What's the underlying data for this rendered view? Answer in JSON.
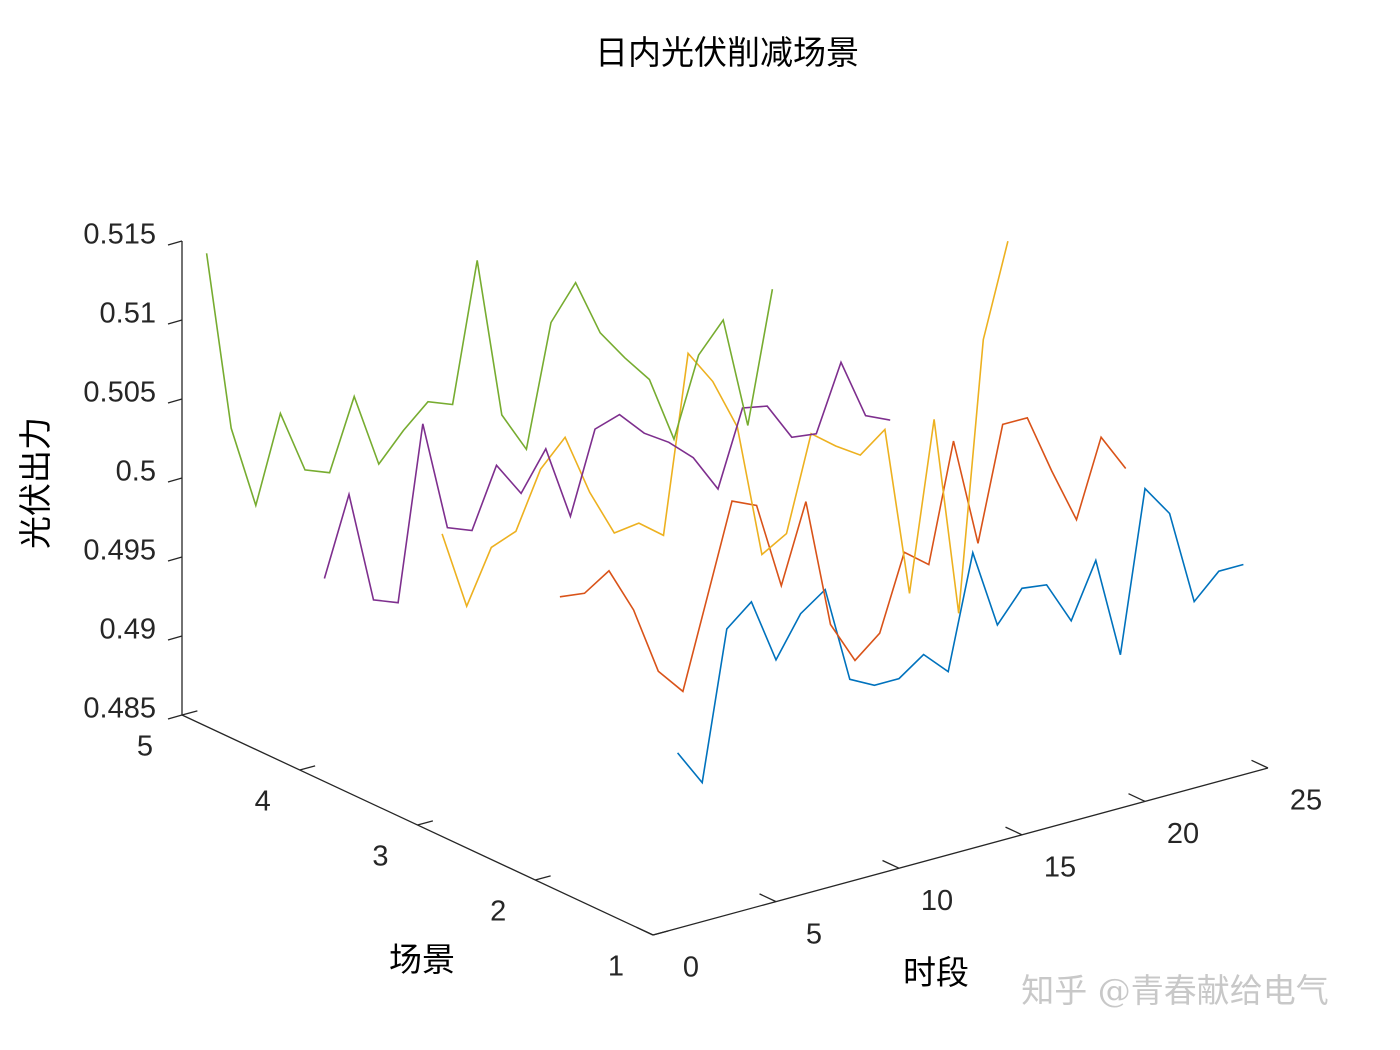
{
  "chart_data": {
    "type": "line3d",
    "title": "日内光伏削减场景",
    "xlabel": "时段",
    "ylabel": "场景",
    "zlabel": "光伏出力",
    "watermark": "知乎 @青春献给电气",
    "x": [
      1,
      2,
      3,
      4,
      5,
      6,
      7,
      8,
      9,
      10,
      11,
      12,
      13,
      14,
      15,
      16,
      17,
      18,
      19,
      20,
      21,
      22,
      23,
      24
    ],
    "series": [
      {
        "y": 1,
        "color": "#0072BD",
        "values": [
          0.4961,
          0.4938,
          0.5031,
          0.5044,
          0.5003,
          0.5028,
          0.5039,
          0.4978,
          0.497,
          0.497,
          0.4981,
          0.4966,
          0.5037,
          0.4987,
          0.5006,
          0.5004,
          0.4977,
          0.5011,
          0.4947,
          0.5048,
          0.5028,
          0.4968,
          0.4983,
          0.4983
        ]
      },
      {
        "y": 2,
        "color": "#D95319",
        "values": [
          0.5025,
          0.5023,
          0.5033,
          0.5004,
          0.4961,
          0.4944,
          0.5,
          0.5056,
          0.5049,
          0.4994,
          0.5043,
          0.4961,
          0.4934,
          0.4947,
          0.4994,
          0.4982,
          0.5056,
          0.4987,
          0.5058,
          0.5058,
          0.502,
          0.4985,
          0.5033,
          0.5009
        ]
      },
      {
        "y": 3,
        "color": "#EDB120",
        "values": [
          0.503,
          0.498,
          0.5013,
          0.5019,
          0.5054,
          0.507,
          0.5031,
          0.5001,
          0.5003,
          0.4991,
          0.5102,
          0.508,
          0.5047,
          0.4962,
          0.4971,
          0.503,
          0.5018,
          0.5008,
          0.502,
          0.4912,
          0.5018,
          0.4891,
          0.506,
          0.5118
        ]
      },
      {
        "y": 4,
        "color": "#7E2F8E",
        "values": [
          0.4967,
          0.5016,
          0.4945,
          0.4939,
          0.5048,
          0.4978,
          0.4972,
          0.5009,
          0.4987,
          0.5011,
          0.4964,
          0.5015,
          0.502,
          0.5004,
          0.4994,
          0.498,
          0.4956,
          0.5003,
          0.5,
          0.4976,
          0.4974,
          0.5015,
          0.4977,
          0.497
        ]
      },
      {
        "y": 5,
        "color": "#77AC30",
        "values": [
          0.5138,
          0.5023,
          0.497,
          0.5024,
          0.4984,
          0.4978,
          0.5022,
          0.4975,
          0.4992,
          0.5006,
          0.5,
          0.5087,
          0.4985,
          0.4959,
          0.5035,
          0.5056,
          0.502,
          0.5,
          0.4982,
          0.494,
          0.4989,
          0.5007,
          0.4936,
          0.5018
        ]
      }
    ],
    "xlim": [
      0,
      25
    ],
    "xticks": [
      0,
      5,
      10,
      15,
      20,
      25
    ],
    "ylim": [
      1,
      5
    ],
    "yticks": [
      1,
      2,
      3,
      4,
      5
    ],
    "zlim": [
      0.485,
      0.515
    ],
    "zticks": [
      0.485,
      0.49,
      0.495,
      0.5,
      0.505,
      0.51,
      0.515
    ]
  }
}
